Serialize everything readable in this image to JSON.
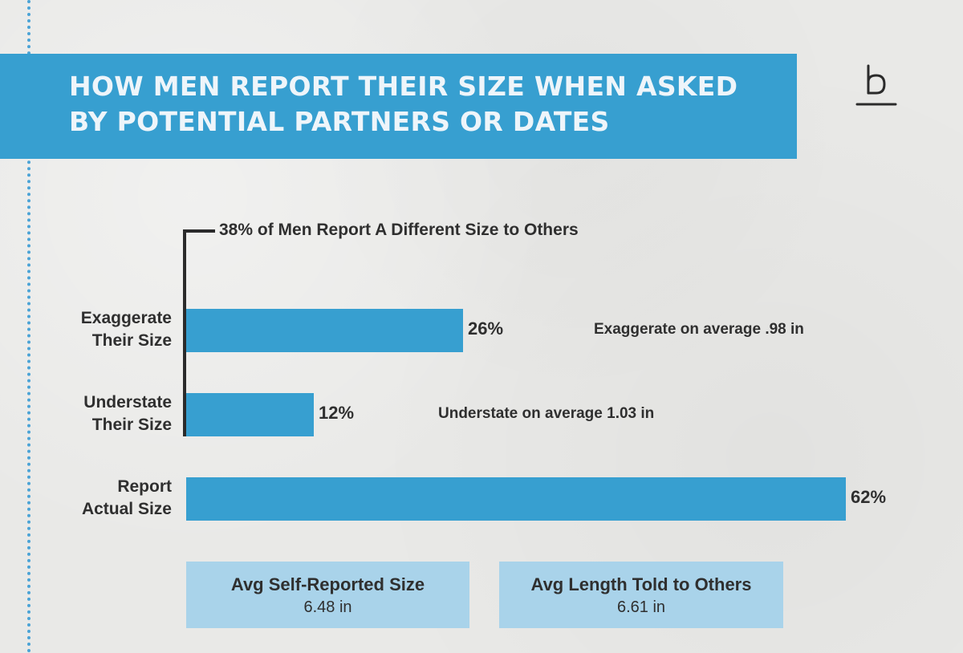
{
  "title": "HOW MEN REPORT THEIR SIZE WHEN ASKED BY POTENTIAL PARTNERS OR DATES",
  "bracket_label": "38% of Men Report A Different Size to Others",
  "colors": {
    "bar": "#379fd0",
    "banner": "#379fd0",
    "stat_box": "#a9d3ea",
    "dots": "#4aa3d6"
  },
  "logo_icon": "brand-b-logo-icon",
  "chart_data": {
    "type": "bar",
    "orientation": "horizontal",
    "title": "HOW MEN REPORT THEIR SIZE WHEN ASKED BY POTENTIAL PARTNERS OR DATES",
    "categories": [
      [
        "Exaggerate",
        "Their Size"
      ],
      [
        "Understate",
        "Their Size"
      ],
      [
        "Report",
        "Actual Size"
      ]
    ],
    "values": [
      26,
      12,
      62
    ],
    "value_labels": [
      "26%",
      "12%",
      "62%"
    ],
    "notes": [
      "Exaggerate on average .98 in",
      "Understate on average 1.03 in",
      ""
    ],
    "xlim": [
      0,
      62
    ],
    "unit": "%",
    "grid": false,
    "legend": "none",
    "annotation": "38% of Men Report A Different Size to Others"
  },
  "stats": [
    {
      "label": "Avg Self-Reported Size",
      "value": "6.48 in"
    },
    {
      "label": "Avg Length Told to Others",
      "value": "6.61 in"
    }
  ]
}
